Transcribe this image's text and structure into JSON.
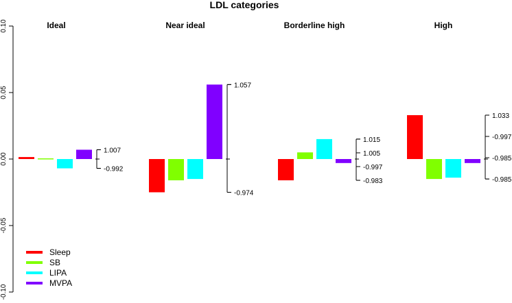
{
  "chart_data": {
    "type": "bar",
    "title": "LDL categories",
    "ylim": [
      -0.1,
      0.1
    ],
    "y_ticks": [
      {
        "value": 0.1,
        "label": "0.10"
      },
      {
        "value": 0.05,
        "label": "0.05"
      },
      {
        "value": 0.0,
        "label": "0.00"
      },
      {
        "value": -0.05,
        "label": "-0.05"
      },
      {
        "value": -0.1,
        "label": "-0.10"
      }
    ],
    "series": [
      {
        "name": "Sleep",
        "color": "#ff0000"
      },
      {
        "name": "SB",
        "color": "#80ff00"
      },
      {
        "name": "LIPA",
        "color": "#00ffff"
      },
      {
        "name": "MVPA",
        "color": "#8000ff"
      }
    ],
    "panels": [
      {
        "title": "Ideal",
        "values": [
          0.0015,
          0.0005,
          -0.007,
          0.007
        ],
        "scale_labels": [
          "1.007",
          "-0.992"
        ]
      },
      {
        "title": "Near ideal",
        "values": [
          -0.025,
          -0.016,
          -0.015,
          0.056
        ],
        "scale_labels": [
          "1.057",
          "-0.974"
        ]
      },
      {
        "title": "Borderline high",
        "values": [
          -0.016,
          0.005,
          0.015,
          -0.003
        ],
        "scale_labels": [
          "1.015",
          "1.005",
          "-0.997",
          "-0.983"
        ]
      },
      {
        "title": "High",
        "values": [
          0.033,
          -0.015,
          -0.014,
          -0.003
        ],
        "scale_labels": [
          "1.033",
          "-0.997",
          "-0.985",
          "-0.985"
        ]
      }
    ],
    "legend_position": "bottom-left",
    "grid": false
  }
}
